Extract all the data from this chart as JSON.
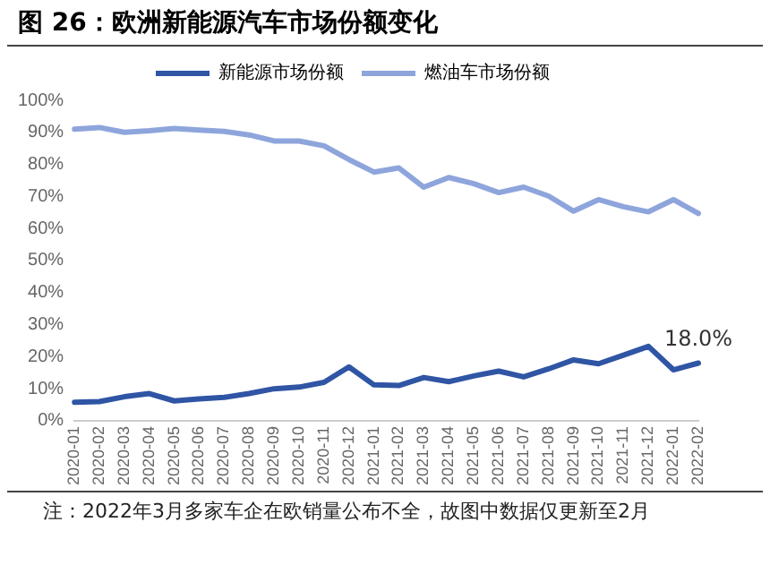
{
  "chart_data": {
    "type": "line",
    "title": "图 26：欧洲新能源汽车市场份额变化",
    "categories": [
      "2020-01",
      "2020-02",
      "2020-03",
      "2020-04",
      "2020-05",
      "2020-06",
      "2020-07",
      "2020-08",
      "2020-09",
      "2020-10",
      "2020-11",
      "2020-12",
      "2021-01",
      "2021-02",
      "2021-03",
      "2021-04",
      "2021-05",
      "2021-06",
      "2021-07",
      "2021-08",
      "2021-09",
      "2021-10",
      "2021-11",
      "2021-12",
      "2022-01",
      "2022-02"
    ],
    "series": [
      {
        "name": "新能源市场份额",
        "color": "#2f55a4",
        "values": [
          5.8,
          6,
          7.5,
          8.5,
          6.2,
          6.8,
          7.3,
          8.5,
          10,
          10.5,
          12,
          16.8,
          11.2,
          11,
          13.5,
          12.2,
          14,
          15.5,
          13.7,
          16.2,
          19,
          17.8,
          20.5,
          23.2,
          15.9,
          18.0
        ],
        "value_labels": [
          null,
          null,
          null,
          null,
          null,
          null,
          null,
          null,
          null,
          null,
          null,
          null,
          null,
          null,
          null,
          null,
          null,
          null,
          null,
          null,
          null,
          null,
          null,
          null,
          null,
          "18.0%"
        ]
      },
      {
        "name": "燃油车市场份额",
        "color": "#8ea5dc",
        "values": [
          91,
          91.5,
          90,
          90.5,
          91.2,
          90.7,
          90.3,
          89.2,
          87.3,
          87.3,
          85.8,
          81.5,
          77.6,
          78.9,
          72.9,
          75.9,
          74,
          71.2,
          72.9,
          70.1,
          65.4,
          69,
          66.8,
          65.2,
          69,
          64.7
        ]
      }
    ],
    "ylim": [
      0,
      100
    ],
    "yticks": [
      {
        "value": 0,
        "label": "0%"
      },
      {
        "value": 10,
        "label": "10%"
      },
      {
        "value": 20,
        "label": "20%"
      },
      {
        "value": 30,
        "label": "30%"
      },
      {
        "value": 40,
        "label": "40%"
      },
      {
        "value": 50,
        "label": "50%"
      },
      {
        "value": 60,
        "label": "60%"
      },
      {
        "value": 70,
        "label": "70%"
      },
      {
        "value": 80,
        "label": "80%"
      },
      {
        "value": 90,
        "label": "90%"
      },
      {
        "value": 100,
        "label": "100%"
      }
    ],
    "grid": false,
    "legend": "top",
    "marker": "none",
    "line_style": "solid",
    "annotations": [
      "注：2022年3月多家车企在欧销量公布不全，故图中数据仅更新至2月"
    ]
  }
}
